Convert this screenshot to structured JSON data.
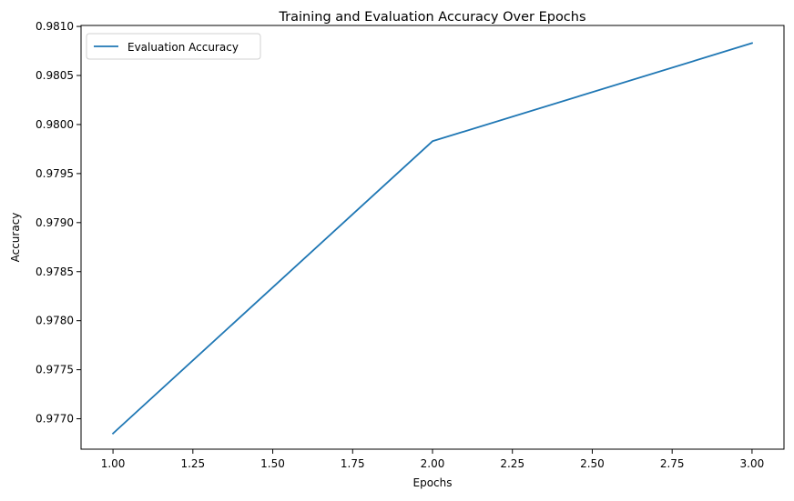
{
  "chart_data": {
    "type": "line",
    "title": "Training and Evaluation Accuracy Over Epochs",
    "xlabel": "Epochs",
    "ylabel": "Accuracy",
    "xlim": [
      0.9,
      3.1
    ],
    "ylim": [
      0.97669,
      0.98101
    ],
    "x_ticks": [
      1.0,
      1.25,
      1.5,
      1.75,
      2.0,
      2.25,
      2.5,
      2.75,
      3.0
    ],
    "x_tick_labels": [
      "1.00",
      "1.25",
      "1.50",
      "1.75",
      "2.00",
      "2.25",
      "2.50",
      "2.75",
      "3.00"
    ],
    "y_ticks": [
      0.977,
      0.9775,
      0.978,
      0.9785,
      0.979,
      0.9795,
      0.98,
      0.9805,
      0.981
    ],
    "y_tick_labels": [
      "0.9770",
      "0.9775",
      "0.9780",
      "0.9785",
      "0.9790",
      "0.9795",
      "0.9800",
      "0.9805",
      "0.9810"
    ],
    "grid": false,
    "legend_position": "top-left",
    "series": [
      {
        "name": "Evaluation Accuracy",
        "color": "#1f77b4",
        "x": [
          1.0,
          2.0,
          3.0
        ],
        "y": [
          0.97685,
          0.97983,
          0.98083
        ]
      }
    ]
  }
}
